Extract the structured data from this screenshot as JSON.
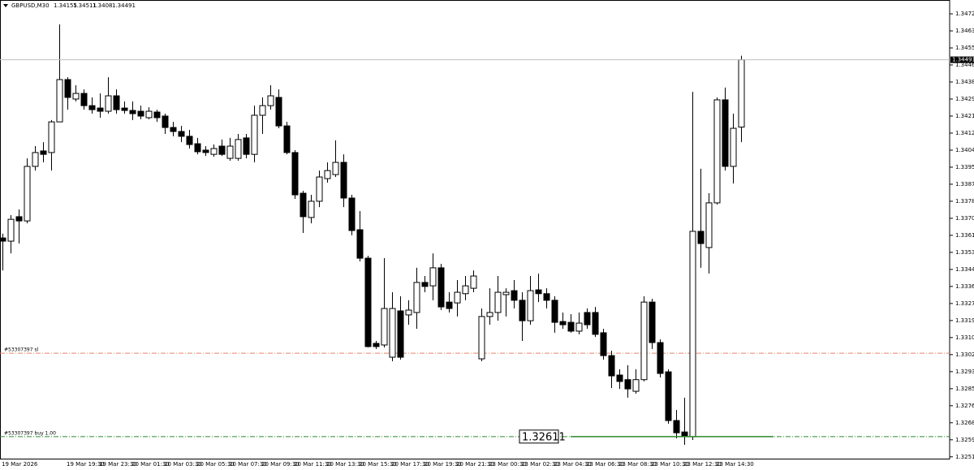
{
  "chart_data": {
    "type": "candlestick",
    "symbol": "GBPUSD,M30",
    "categories": [
      "19 Mar 2026",
      null,
      null,
      null,
      null,
      null,
      null,
      null,
      "19 Mar 19:30",
      null,
      null,
      null,
      "19 Mar 23:30",
      null,
      null,
      null,
      "20 Mar 01:30",
      null,
      null,
      null,
      "20 Mar 03:30",
      null,
      null,
      null,
      "20 Mar 05:30",
      null,
      null,
      null,
      "20 Mar 07:30",
      null,
      null,
      null,
      "20 Mar 09:30",
      null,
      null,
      null,
      "20 Mar 11:30",
      null,
      null,
      null,
      "20 Mar 13:30",
      null,
      null,
      null,
      "20 Mar 15:30",
      null,
      null,
      null,
      "20 Mar 17:30",
      null,
      null,
      null,
      "20 Mar 19:30",
      null,
      null,
      null,
      "20 Mar 21:30",
      null,
      null,
      null,
      "23 Mar 00:30",
      null,
      null,
      null,
      "23 Mar 02:30",
      null,
      null,
      null,
      "23 Mar 04:30",
      null,
      null,
      null,
      "23 Mar 06:30",
      null,
      null,
      null,
      "23 Mar 08:30",
      null,
      null,
      null,
      "23 Mar 10:30",
      null,
      null,
      null,
      "23 Mar 12:30",
      null,
      null,
      null,
      "23 Mar 14:30",
      null,
      null,
      null
    ],
    "open": [
      1.33602,
      1.33586,
      1.33708,
      1.33687,
      1.33959,
      1.34036,
      1.34028,
      1.34181,
      1.34392,
      1.34295,
      1.34323,
      1.34262,
      1.3425,
      1.34234,
      1.34311,
      1.3425,
      1.34238,
      1.34234,
      1.34202,
      1.3423,
      1.3421,
      1.34153,
      1.34133,
      1.34109,
      1.34072,
      1.3404,
      1.34019,
      1.3406,
      1.33999,
      1.33999,
      1.34101,
      1.34019,
      1.34214,
      1.34262,
      1.34303,
      1.34161,
      1.34028,
      1.33825,
      1.33704,
      1.33785,
      1.33898,
      1.33918,
      1.33979,
      1.33801,
      1.33643,
      1.33501,
      1.33076,
      1.33068,
      1.33007,
      1.33238,
      1.33218,
      1.3323,
      1.3338,
      1.33363,
      1.33453,
      1.33282,
      1.33278,
      1.33324,
      1.33351,
      1.32999,
      1.3321,
      1.3323,
      1.33319,
      1.33339,
      1.33291,
      1.33189,
      1.33343,
      1.33324,
      1.33291,
      1.33185,
      1.33181,
      1.33137,
      1.3323,
      1.3323,
      1.33129,
      1.33015,
      1.32918,
      1.32895,
      1.32837,
      1.32895,
      1.33282,
      1.3308,
      1.32934,
      1.32691,
      1.32634,
      1.3261,
      1.33635,
      1.33554,
      1.33777,
      1.34291,
      1.33959,
      1.34155
    ],
    "high": [
      1.33623,
      1.33716,
      1.33744,
      1.33999,
      1.3406,
      1.3408,
      1.3419,
      1.34667,
      1.34404,
      1.34364,
      1.34343,
      1.34303,
      1.34323,
      1.34404,
      1.34343,
      1.34283,
      1.34283,
      1.34262,
      1.34254,
      1.34242,
      1.34222,
      1.34181,
      1.34161,
      1.34141,
      1.34101,
      1.3406,
      1.34068,
      1.34093,
      1.34101,
      1.34121,
      1.34121,
      1.34262,
      1.34303,
      1.34364,
      1.34343,
      1.34181,
      1.3404,
      1.33837,
      1.33817,
      1.33938,
      1.33979,
      1.34089,
      1.34019,
      1.33817,
      1.33736,
      1.33513,
      1.33088,
      1.33501,
      1.33331,
      1.33311,
      1.33291,
      1.33453,
      1.33412,
      1.33525,
      1.33473,
      1.33331,
      1.33392,
      1.33412,
      1.3344,
      1.3325,
      1.33351,
      1.33412,
      1.33351,
      1.33392,
      1.33331,
      1.33412,
      1.33424,
      1.33351,
      1.33311,
      1.3323,
      1.33222,
      1.3323,
      1.3325,
      1.33258,
      1.33149,
      1.33039,
      1.32947,
      1.32967,
      1.32947,
      1.33311,
      1.33299,
      1.33096,
      1.32947,
      1.32744,
      1.32805,
      1.34331,
      1.33947,
      1.33825,
      1.34303,
      1.34352,
      1.34222,
      1.34511
    ],
    "low": [
      1.3344,
      1.33525,
      1.33574,
      1.33675,
      1.33938,
      1.33979,
      1.33938,
      1.34181,
      1.34242,
      1.34283,
      1.34242,
      1.34222,
      1.34202,
      1.34222,
      1.34222,
      1.34222,
      1.3419,
      1.34194,
      1.34194,
      1.34181,
      1.34121,
      1.34109,
      1.3408,
      1.34048,
      1.34019,
      1.34011,
      1.34007,
      1.34011,
      1.33987,
      1.33987,
      1.33999,
      1.33979,
      1.34121,
      1.34242,
      1.34149,
      1.34019,
      1.33797,
      1.33627,
      1.33675,
      1.33756,
      1.33878,
      1.33906,
      1.33756,
      1.33615,
      1.33485,
      1.33056,
      1.33048,
      1.33056,
      1.32987,
      1.32995,
      1.33169,
      1.33149,
      1.33331,
      1.33291,
      1.33242,
      1.3323,
      1.3321,
      1.33291,
      1.33331,
      1.32987,
      1.33169,
      1.33189,
      1.3321,
      1.3325,
      1.33088,
      1.33169,
      1.33282,
      1.3325,
      1.33129,
      1.33149,
      1.33129,
      1.33121,
      1.33149,
      1.33108,
      1.32995,
      1.32853,
      1.32849,
      1.32805,
      1.32825,
      1.32886,
      1.33048,
      1.32906,
      1.32675,
      1.32602,
      1.3257,
      1.32594,
      1.33453,
      1.33424,
      1.33768,
      1.33938,
      1.33874,
      1.3408
    ],
    "close": [
      1.33586,
      1.33695,
      1.33687,
      1.33959,
      1.34028,
      1.34019,
      1.34181,
      1.34392,
      1.34303,
      1.34323,
      1.34262,
      1.34242,
      1.34234,
      1.34311,
      1.34242,
      1.34238,
      1.34222,
      1.3421,
      1.34234,
      1.34202,
      1.34153,
      1.34133,
      1.34109,
      1.34068,
      1.34032,
      1.34028,
      1.34048,
      1.34019,
      1.3406,
      1.34093,
      1.34019,
      1.34214,
      1.34262,
      1.34311,
      1.34161,
      1.34028,
      1.33817,
      1.33708,
      1.33785,
      1.33906,
      1.33938,
      1.33979,
      1.33801,
      1.33639,
      1.33501,
      1.3306,
      1.3306,
      1.3325,
      1.3325,
      1.33007,
      1.33242,
      1.3338,
      1.3336,
      1.33453,
      1.33258,
      1.3325,
      1.33331,
      1.33363,
      1.33412,
      1.3321,
      1.3323,
      1.33331,
      1.33331,
      1.33291,
      1.33189,
      1.33339,
      1.33324,
      1.33291,
      1.33181,
      1.33169,
      1.33137,
      1.33177,
      1.33169,
      1.33121,
      1.33015,
      1.32914,
      1.32886,
      1.32849,
      1.32895,
      1.33282,
      1.3308,
      1.32926,
      1.32691,
      1.3263,
      1.32614,
      1.33635,
      1.33574,
      1.33777,
      1.34291,
      1.33959,
      1.34149,
      1.34491
    ],
    "up_color": "#ffffff",
    "down_color": "#000000",
    "ylim": [
      1.32501,
      1.34789
    ],
    "yticks": [
      {
        "value": 1.3472,
        "label": "1.34720"
      },
      {
        "value": 1.34635,
        "label": "1.34635"
      },
      {
        "value": 1.3455,
        "label": "1.34550"
      },
      {
        "value": 1.34465,
        "label": "1.34465"
      },
      {
        "value": 1.3438,
        "label": "1.34380"
      },
      {
        "value": 1.34295,
        "label": "1.34295"
      },
      {
        "value": 1.3421,
        "label": "1.34210"
      },
      {
        "value": 1.34125,
        "label": "1.34125"
      },
      {
        "value": 1.3404,
        "label": "1.34040"
      },
      {
        "value": 1.33955,
        "label": "1.33955"
      },
      {
        "value": 1.3387,
        "label": "1.33870"
      },
      {
        "value": 1.33785,
        "label": "1.33785"
      },
      {
        "value": 1.337,
        "label": "1.33700"
      },
      {
        "value": 1.33615,
        "label": "1.33615"
      },
      {
        "value": 1.3353,
        "label": "1.33530"
      },
      {
        "value": 1.33445,
        "label": "1.33445"
      },
      {
        "value": 1.3336,
        "label": "1.33360"
      },
      {
        "value": 1.33275,
        "label": "1.33275"
      },
      {
        "value": 1.3319,
        "label": "1.33190"
      },
      {
        "value": 1.33105,
        "label": "1.33105"
      },
      {
        "value": 1.3302,
        "label": "1.33020"
      },
      {
        "value": 1.32935,
        "label": "1.32935"
      },
      {
        "value": 1.3285,
        "label": "1.32850"
      },
      {
        "value": 1.32765,
        "label": "1.32765"
      },
      {
        "value": 1.3268,
        "label": "1.32680"
      },
      {
        "value": 1.32595,
        "label": "1.32595"
      },
      {
        "value": 1.3251,
        "label": "1.32510"
      }
    ],
    "grid": false,
    "orders": [
      {
        "label": "#53307397 sl",
        "price": 1.33027,
        "color": "#e8836a"
      },
      {
        "label": "#53307397 buy 1.00",
        "price": 1.32611,
        "color": "#2e8b2e"
      }
    ]
  }
}
